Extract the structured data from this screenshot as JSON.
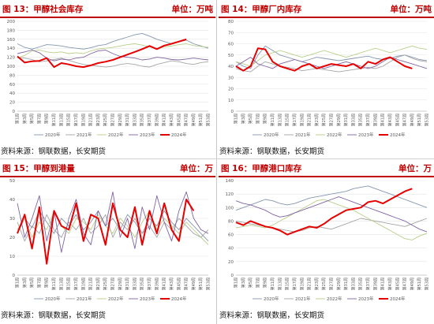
{
  "panels": [
    {
      "title": "图 13：甲醇社会库存",
      "unit": "单位：万吨",
      "source": "资料来源：钢联数据，长安期货"
    },
    {
      "title": "图 14：甲醇厂内库存",
      "unit": "单位：万吨",
      "source": "资料来源：钢联数据，长安期货"
    },
    {
      "title": "图 15：甲醇到港量",
      "unit": "单位：万",
      "source": "资料来源：钢联数据，长安期货"
    },
    {
      "title": "图 16：甲醇港口库存",
      "unit": "单位：万",
      "source": "资料来源：钢联数据，长安期货"
    }
  ],
  "week_labels": [
    "第1周",
    "第3周",
    "第5周",
    "第7周",
    "第9周",
    "第11周",
    "第13周",
    "第15周",
    "第17周",
    "第19周",
    "第21周",
    "第23周",
    "第25周",
    "第27周",
    "第29周",
    "第31周",
    "第33周",
    "第35周",
    "第37周",
    "第39周",
    "第41周",
    "第43周",
    "第45周",
    "第47周",
    "第49周",
    "第51周",
    "第53周"
  ],
  "series_style": [
    {
      "name": "2020年",
      "color": "#8497b0",
      "width": 0.9
    },
    {
      "name": "2021年",
      "color": "#a5a5a5",
      "width": 0.9
    },
    {
      "name": "2022年",
      "color": "#b8cf8a",
      "width": 0.9
    },
    {
      "name": "2023年",
      "color": "#8064a2",
      "width": 0.9
    },
    {
      "name": "2024年",
      "color": "#e60000",
      "width": 2.0
    }
  ],
  "chart_data": [
    {
      "type": "line",
      "ylim": [
        0,
        200
      ],
      "yticks": [
        0,
        20,
        40,
        60,
        80,
        100,
        120,
        140,
        160,
        180,
        200
      ],
      "x": [
        "第1周",
        "第3周",
        "第5周",
        "第7周",
        "第9周",
        "第11周",
        "第13周",
        "第15周",
        "第17周",
        "第19周",
        "第21周",
        "第23周",
        "第25周",
        "第27周",
        "第29周",
        "第31周",
        "第33周",
        "第35周",
        "第37周",
        "第39周",
        "第41周",
        "第43周",
        "第45周",
        "第47周",
        "第49周",
        "第51周",
        "第53周"
      ],
      "series": [
        {
          "name": "2020年",
          "values": [
            150,
            142,
            138,
            143,
            148,
            147,
            145,
            142,
            140,
            138,
            141,
            146,
            148,
            155,
            160,
            165,
            170,
            173,
            167,
            160,
            155,
            150,
            154,
            158,
            150,
            145,
            140
          ]
        },
        {
          "name": "2021年",
          "values": [
            120,
            118,
            115,
            110,
            112,
            115,
            118,
            113,
            108,
            104,
            102,
            100,
            98,
            100,
            104,
            106,
            104,
            100,
            98,
            104,
            108,
            112,
            110,
            106,
            104,
            108,
            110
          ]
        },
        {
          "name": "2022年",
          "values": [
            118,
            124,
            134,
            136,
            132,
            130,
            132,
            128,
            130,
            128,
            134,
            138,
            140,
            142,
            145,
            148,
            150,
            147,
            143,
            140,
            143,
            145,
            148,
            150,
            146,
            144,
            142
          ]
        },
        {
          "name": "2023年",
          "values": [
            128,
            132,
            136,
            130,
            118,
            112,
            116,
            114,
            118,
            120,
            128,
            134,
            136,
            128,
            122,
            120,
            118,
            114,
            116,
            120,
            118,
            115,
            114,
            116,
            118,
            116,
            114
          ]
        },
        {
          "name": "2024年",
          "values": [
            122,
            108,
            111,
            112,
            118,
            98,
            107,
            104,
            100,
            98,
            102,
            107,
            110,
            114,
            120,
            126,
            132,
            138,
            145,
            138,
            146,
            150,
            155,
            160,
            null,
            null,
            null
          ]
        }
      ]
    },
    {
      "type": "line",
      "ylim": [
        0,
        80
      ],
      "yticks": [
        0,
        10,
        20,
        30,
        40,
        50,
        60,
        70,
        80
      ],
      "x": [
        "第1周",
        "第3周",
        "第5周",
        "第7周",
        "第9周",
        "第11周",
        "第13周",
        "第15周",
        "第17周",
        "第19周",
        "第21周",
        "第23周",
        "第25周",
        "第27周",
        "第29周",
        "第31周",
        "第33周",
        "第35周",
        "第37周",
        "第39周",
        "第41周",
        "第43周",
        "第45周",
        "第47周",
        "第49周",
        "第51周",
        "第53周"
      ],
      "series": [
        {
          "name": "2020年",
          "values": [
            44,
            40,
            38,
            50,
            58,
            54,
            50,
            48,
            46,
            44,
            46,
            48,
            47,
            46,
            45,
            46,
            47,
            48,
            49,
            47,
            46,
            47,
            49,
            50,
            48,
            46,
            45
          ]
        },
        {
          "name": "2021年",
          "values": [
            38,
            36,
            35,
            40,
            44,
            42,
            40,
            39,
            38,
            36,
            37,
            38,
            37,
            36,
            35,
            36,
            37,
            38,
            39,
            38,
            40,
            44,
            48,
            50,
            47,
            45,
            44
          ]
        },
        {
          "name": "2022年",
          "values": [
            44,
            42,
            40,
            45,
            50,
            52,
            54,
            52,
            50,
            48,
            50,
            52,
            54,
            52,
            50,
            48,
            50,
            52,
            54,
            56,
            54,
            52,
            54,
            56,
            58,
            56,
            55
          ]
        },
        {
          "name": "2023年",
          "values": [
            40,
            44,
            48,
            42,
            40,
            38,
            42,
            44,
            46,
            44,
            42,
            40,
            38,
            40,
            42,
            44,
            42,
            40,
            38,
            40,
            44,
            48,
            46,
            44,
            42,
            40,
            38
          ]
        },
        {
          "name": "2024年",
          "values": [
            40,
            36,
            40,
            56,
            55,
            44,
            40,
            38,
            36,
            40,
            42,
            38,
            40,
            42,
            41,
            40,
            42,
            38,
            44,
            42,
            46,
            48,
            44,
            40,
            38,
            null,
            null
          ]
        }
      ]
    },
    {
      "type": "line",
      "ylim": [
        0,
        50
      ],
      "yticks": [
        0,
        10,
        20,
        30,
        40,
        50
      ],
      "x": [
        "第1周",
        "第3周",
        "第5周",
        "第7周",
        "第9周",
        "第11周",
        "第13周",
        "第15周",
        "第17周",
        "第19周",
        "第21周",
        "第23周",
        "第25周",
        "第27周",
        "第29周",
        "第31周",
        "第33周",
        "第35周",
        "第37周",
        "第39周",
        "第41周",
        "第43周",
        "第45周",
        "第47周",
        "第49周",
        "第51周",
        "第53周"
      ],
      "series": [
        {
          "name": "2020年",
          "values": [
            22,
            30,
            25,
            34,
            28,
            22,
            30,
            26,
            32,
            24,
            28,
            34,
            26,
            30,
            24,
            32,
            28,
            22,
            30,
            26,
            34,
            28,
            24,
            30,
            26,
            22,
            18
          ]
        },
        {
          "name": "2021年",
          "values": [
            28,
            18,
            26,
            22,
            32,
            24,
            20,
            28,
            24,
            30,
            22,
            26,
            32,
            20,
            28,
            24,
            30,
            22,
            26,
            20,
            28,
            24,
            30,
            26,
            22,
            20,
            24
          ]
        },
        {
          "name": "2022年",
          "values": [
            24,
            30,
            20,
            28,
            24,
            34,
            26,
            22,
            30,
            28,
            24,
            32,
            26,
            22,
            30,
            26,
            20,
            28,
            34,
            24,
            30,
            26,
            22,
            28,
            24,
            20,
            16
          ]
        },
        {
          "name": "2023年",
          "values": [
            38,
            20,
            30,
            42,
            18,
            34,
            12,
            30,
            40,
            22,
            16,
            34,
            26,
            44,
            20,
            30,
            14,
            36,
            24,
            42,
            28,
            18,
            34,
            44,
            30,
            24,
            22
          ]
        },
        {
          "name": "2024年",
          "values": [
            22,
            32,
            14,
            36,
            6,
            34,
            26,
            24,
            38,
            18,
            32,
            30,
            16,
            38,
            24,
            20,
            36,
            16,
            34,
            22,
            38,
            24,
            18,
            40,
            34,
            null,
            null
          ]
        }
      ]
    },
    {
      "type": "line",
      "ylim": [
        0,
        140
      ],
      "yticks": [
        0,
        20,
        40,
        60,
        80,
        100,
        120,
        140
      ],
      "x": [
        "第1周",
        "第3周",
        "第5周",
        "第7周",
        "第9周",
        "第11周",
        "第13周",
        "第15周",
        "第17周",
        "第19周",
        "第21周",
        "第23周",
        "第25周",
        "第27周",
        "第29周",
        "第31周",
        "第33周",
        "第35周",
        "第37周",
        "第39周",
        "第41周",
        "第43周",
        "第45周",
        "第47周",
        "第49周",
        "第51周",
        "第53周"
      ],
      "series": [
        {
          "name": "2020年",
          "values": [
            96,
            100,
            104,
            108,
            112,
            110,
            106,
            104,
            106,
            110,
            114,
            116,
            118,
            120,
            122,
            124,
            128,
            130,
            132,
            128,
            124,
            120,
            116,
            112,
            108,
            104,
            100
          ]
        },
        {
          "name": "2021年",
          "values": [
            80,
            78,
            76,
            74,
            72,
            70,
            68,
            66,
            64,
            66,
            70,
            72,
            70,
            68,
            72,
            76,
            80,
            84,
            82,
            80,
            78,
            76,
            74,
            72,
            76,
            80,
            84
          ]
        },
        {
          "name": "2022年",
          "values": [
            70,
            72,
            74,
            72,
            70,
            74,
            80,
            86,
            92,
            98,
            104,
            110,
            112,
            108,
            104,
            100,
            96,
            90,
            84,
            78,
            72,
            66,
            60,
            54,
            52,
            58,
            62
          ]
        },
        {
          "name": "2023年",
          "values": [
            110,
            106,
            104,
            100,
            96,
            90,
            86,
            88,
            92,
            96,
            100,
            104,
            108,
            112,
            116,
            112,
            108,
            104,
            100,
            96,
            92,
            88,
            84,
            80,
            74,
            68,
            64
          ]
        },
        {
          "name": "2024年",
          "values": [
            78,
            74,
            80,
            76,
            72,
            70,
            66,
            60,
            64,
            68,
            72,
            70,
            76,
            84,
            90,
            96,
            98,
            100,
            108,
            110,
            106,
            112,
            118,
            124,
            128,
            null,
            null
          ]
        }
      ]
    }
  ]
}
